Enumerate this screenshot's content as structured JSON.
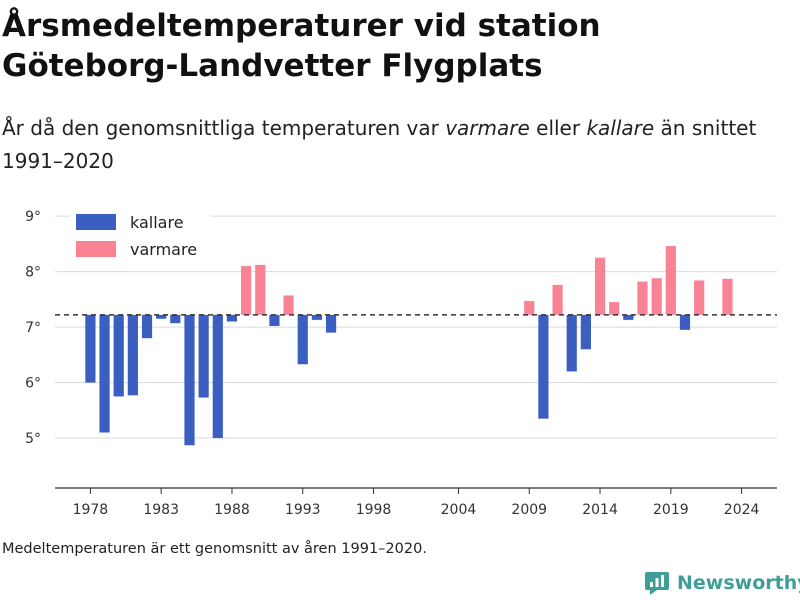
{
  "header": {
    "title_line1": "Årsmedeltemperaturer vid station",
    "title_line2": "Göteborg-Landvetter Flygplats",
    "subtitle_before": "År då den genomsnittliga temperaturen var ",
    "subtitle_warm": "varmare",
    "subtitle_middle": " eller ",
    "subtitle_cold": "kallare",
    "subtitle_after": " än snittet 1991–2020"
  },
  "footnote": "Medeltemperaturen är ett genomsnitt av åren 1991–2020.",
  "brand": {
    "name": "Newsworthy",
    "color": "#3f9e97"
  },
  "colors": {
    "colder": "#3b5fc0",
    "warmer": "#f98395",
    "baseline": "#333333",
    "grid": "#d9d9d9"
  },
  "chart_data": {
    "type": "bar",
    "title": "Årsmedeltemperaturer vid station Göteborg-Landvetter Flygplats",
    "baseline": 7.22,
    "ylim": [
      4.1,
      9.2
    ],
    "xlim": [
      1975.5,
      2026.5
    ],
    "y_ticks": [
      5,
      6,
      7,
      8,
      9
    ],
    "y_tick_labels": [
      "5°",
      "6°",
      "7°",
      "8°",
      "9°"
    ],
    "x_ticks": [
      1978,
      1983,
      1988,
      1993,
      1998,
      2004,
      2009,
      2014,
      2019,
      2024
    ],
    "x_tick_labels": [
      "1978",
      "1983",
      "1988",
      "1993",
      "1998",
      "2004",
      "2009",
      "2014",
      "2019",
      "2024"
    ],
    "grid": "horizontal",
    "legend": {
      "position": "top-left",
      "entries": [
        {
          "label": "kallare",
          "color": "#3b5fc0"
        },
        {
          "label": "varmare",
          "color": "#f98395"
        }
      ]
    },
    "series": [
      {
        "name": "kallare",
        "color": "#3b5fc0",
        "points": [
          {
            "year": 1978,
            "value": 6.0
          },
          {
            "year": 1979,
            "value": 5.1
          },
          {
            "year": 1980,
            "value": 5.75
          },
          {
            "year": 1981,
            "value": 5.77
          },
          {
            "year": 1982,
            "value": 6.8
          },
          {
            "year": 1983,
            "value": 7.15
          },
          {
            "year": 1984,
            "value": 7.07
          },
          {
            "year": 1985,
            "value": 4.87
          },
          {
            "year": 1986,
            "value": 5.73
          },
          {
            "year": 1987,
            "value": 5.0
          },
          {
            "year": 1988,
            "value": 7.1
          },
          {
            "year": 1991,
            "value": 7.02
          },
          {
            "year": 1993,
            "value": 6.33
          },
          {
            "year": 1994,
            "value": 7.13
          },
          {
            "year": 1995,
            "value": 6.9
          },
          {
            "year": 2010,
            "value": 5.35
          },
          {
            "year": 2012,
            "value": 6.2
          },
          {
            "year": 2013,
            "value": 6.6
          },
          {
            "year": 2016,
            "value": 7.13
          },
          {
            "year": 2020,
            "value": 6.95
          }
        ]
      },
      {
        "name": "varmare",
        "color": "#f98395",
        "points": [
          {
            "year": 1989,
            "value": 8.1
          },
          {
            "year": 1990,
            "value": 8.12
          },
          {
            "year": 1992,
            "value": 7.57
          },
          {
            "year": 2009,
            "value": 7.47
          },
          {
            "year": 2011,
            "value": 7.76
          },
          {
            "year": 2014,
            "value": 8.25
          },
          {
            "year": 2015,
            "value": 7.45
          },
          {
            "year": 2017,
            "value": 7.82
          },
          {
            "year": 2018,
            "value": 7.88
          },
          {
            "year": 2019,
            "value": 8.46
          },
          {
            "year": 2021,
            "value": 7.84
          },
          {
            "year": 2023,
            "value": 7.87
          }
        ]
      }
    ]
  }
}
